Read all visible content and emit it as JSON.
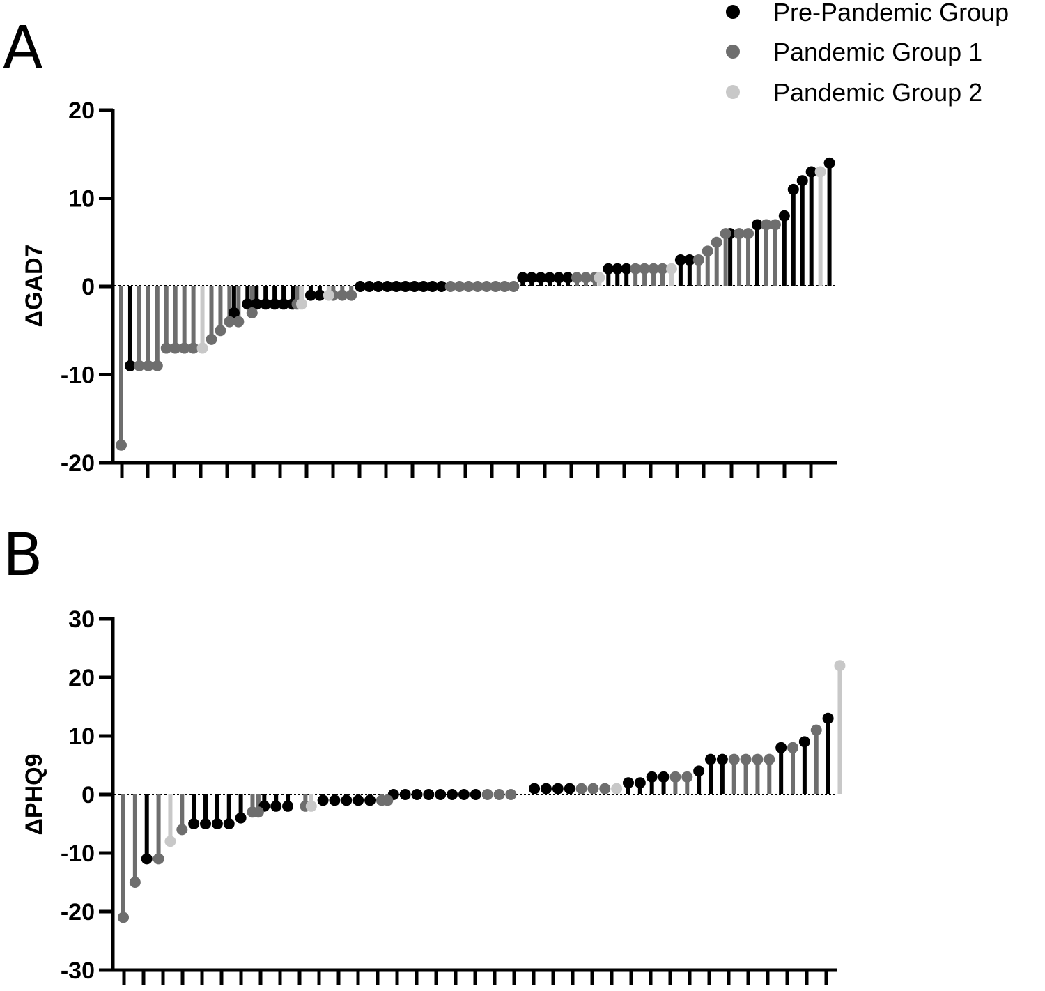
{
  "legend": {
    "items": [
      {
        "label": "Pre-Pandemic Group",
        "color": "#000000"
      },
      {
        "label": "Pandemic Group 1",
        "color": "#6e6e6e"
      },
      {
        "label": "Pandemic Group 2",
        "color": "#c8c8c8"
      }
    ]
  },
  "chart_data": [
    {
      "type": "lollipop",
      "panel": "A",
      "title": "",
      "xlabel": "",
      "ylabel": "ΔGAD7",
      "ylim": [
        -20,
        20
      ],
      "yticks": [
        "20",
        "10",
        "0",
        "-10",
        "-20"
      ],
      "grid": false,
      "legend_position": "top-right",
      "series": [
        {
          "name": "Pre-Pandemic Group",
          "color": "#000000",
          "points": [
            [
              2,
              -9
            ],
            [
              25,
              -3
            ],
            [
              28,
              -2
            ],
            [
              30,
              -2
            ],
            [
              32,
              -2
            ],
            [
              34,
              -2
            ],
            [
              36,
              -2
            ],
            [
              38,
              -2
            ],
            [
              42,
              -1
            ],
            [
              44,
              -1
            ],
            [
              53,
              0
            ],
            [
              55,
              0
            ],
            [
              57,
              0
            ],
            [
              59,
              0
            ],
            [
              61,
              0
            ],
            [
              63,
              0
            ],
            [
              65,
              0
            ],
            [
              67,
              0
            ],
            [
              69,
              0
            ],
            [
              71,
              0
            ],
            [
              89,
              1
            ],
            [
              91,
              1
            ],
            [
              93,
              1
            ],
            [
              95,
              1
            ],
            [
              97,
              1
            ],
            [
              99,
              1
            ],
            [
              108,
              2
            ],
            [
              110,
              2
            ],
            [
              112,
              2
            ],
            [
              124,
              3
            ],
            [
              126,
              3
            ],
            [
              135,
              6
            ],
            [
              141,
              7
            ],
            [
              147,
              8
            ],
            [
              149,
              11
            ],
            [
              151,
              12
            ],
            [
              153,
              13
            ],
            [
              157,
              14
            ]
          ]
        },
        {
          "name": "Pandemic Group 1",
          "color": "#6e6e6e",
          "points": [
            [
              0,
              -18
            ],
            [
              4,
              -9
            ],
            [
              6,
              -9
            ],
            [
              8,
              -9
            ],
            [
              10,
              -7
            ],
            [
              12,
              -7
            ],
            [
              14,
              -7
            ],
            [
              16,
              -7
            ],
            [
              20,
              -6
            ],
            [
              22,
              -5
            ],
            [
              24,
              -4
            ],
            [
              26,
              -4
            ],
            [
              29,
              -3
            ],
            [
              39,
              -2
            ],
            [
              47,
              -1
            ],
            [
              49,
              -1
            ],
            [
              51,
              -1
            ],
            [
              73,
              0
            ],
            [
              75,
              0
            ],
            [
              77,
              0
            ],
            [
              79,
              0
            ],
            [
              81,
              0
            ],
            [
              83,
              0
            ],
            [
              85,
              0
            ],
            [
              87,
              0
            ],
            [
              101,
              1
            ],
            [
              103,
              1
            ],
            [
              105,
              1
            ],
            [
              114,
              2
            ],
            [
              116,
              2
            ],
            [
              118,
              2
            ],
            [
              120,
              2
            ],
            [
              128,
              3
            ],
            [
              130,
              4
            ],
            [
              132,
              5
            ],
            [
              134,
              6
            ],
            [
              137,
              6
            ],
            [
              139,
              6
            ],
            [
              143,
              7
            ],
            [
              145,
              7
            ]
          ]
        },
        {
          "name": "Pandemic Group 2",
          "color": "#c8c8c8",
          "points": [
            [
              18,
              -7
            ],
            [
              40,
              -2
            ],
            [
              46,
              -1
            ],
            [
              106,
              1
            ],
            [
              122,
              2
            ],
            [
              155,
              13
            ]
          ]
        }
      ]
    },
    {
      "type": "lollipop",
      "panel": "B",
      "title": "",
      "xlabel": "",
      "ylabel": "ΔPHQ9",
      "ylim": [
        -30,
        30
      ],
      "yticks": [
        "30",
        "20",
        "10",
        "0",
        "-10",
        "-20",
        "-30"
      ],
      "grid": false,
      "series": [
        {
          "name": "Pre-Pandemic Group",
          "color": "#000000",
          "points": [
            [
              4,
              -11
            ],
            [
              12,
              -5
            ],
            [
              14,
              -5
            ],
            [
              16,
              -5
            ],
            [
              18,
              -5
            ],
            [
              20,
              -4
            ],
            [
              24,
              -2
            ],
            [
              26,
              -2
            ],
            [
              28,
              -2
            ],
            [
              34,
              -1
            ],
            [
              36,
              -1
            ],
            [
              38,
              -1
            ],
            [
              40,
              -1
            ],
            [
              42,
              -1
            ],
            [
              46,
              0
            ],
            [
              48,
              0
            ],
            [
              50,
              0
            ],
            [
              52,
              0
            ],
            [
              54,
              0
            ],
            [
              56,
              0
            ],
            [
              58,
              0
            ],
            [
              60,
              0
            ],
            [
              70,
              1
            ],
            [
              72,
              1
            ],
            [
              74,
              1
            ],
            [
              76,
              1
            ],
            [
              86,
              2
            ],
            [
              88,
              2
            ],
            [
              90,
              3
            ],
            [
              92,
              3
            ],
            [
              98,
              4
            ],
            [
              100,
              6
            ],
            [
              102,
              6
            ],
            [
              112,
              8
            ],
            [
              116,
              9
            ],
            [
              120,
              13
            ]
          ]
        },
        {
          "name": "Pandemic Group 1",
          "color": "#6e6e6e",
          "points": [
            [
              0,
              -21
            ],
            [
              2,
              -15
            ],
            [
              6,
              -11
            ],
            [
              10,
              -6
            ],
            [
              22,
              -3
            ],
            [
              23,
              -3
            ],
            [
              31,
              -2
            ],
            [
              44,
              -1
            ],
            [
              45,
              -1
            ],
            [
              62,
              0
            ],
            [
              64,
              0
            ],
            [
              66,
              0
            ],
            [
              78,
              1
            ],
            [
              80,
              1
            ],
            [
              82,
              1
            ],
            [
              94,
              3
            ],
            [
              96,
              3
            ],
            [
              104,
              6
            ],
            [
              106,
              6
            ],
            [
              108,
              6
            ],
            [
              110,
              6
            ],
            [
              114,
              8
            ],
            [
              118,
              11
            ]
          ]
        },
        {
          "name": "Pandemic Group 2",
          "color": "#c8c8c8",
          "points": [
            [
              8,
              -8
            ],
            [
              32,
              -2
            ],
            [
              84,
              1
            ],
            [
              122,
              22
            ]
          ]
        }
      ]
    }
  ]
}
